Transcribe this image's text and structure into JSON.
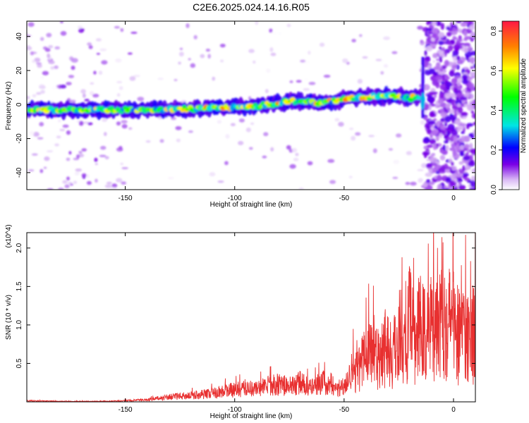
{
  "title": "C2E6.2025.024.14.16.R05",
  "chart_data": [
    {
      "type": "heatmap",
      "xlabel": "Height of straight line (km)",
      "ylabel": "Frequency (Hz)",
      "xlim": [
        -195,
        10
      ],
      "ylim": [
        -50,
        49
      ],
      "xticks": [
        "-150",
        "-100",
        "-50",
        "0"
      ],
      "yticks": [
        "-40",
        "-20",
        "0",
        "20",
        "40"
      ],
      "colorbar": {
        "label": "Normalized spectral amplitude",
        "range": [
          0,
          0.85
        ],
        "ticks": [
          "0.0",
          "0.2",
          "0.4",
          "0.6",
          "0.8"
        ]
      },
      "ridge": {
        "x": [
          -195,
          -170,
          -150,
          -130,
          -110,
          -90,
          -75,
          -60,
          -45,
          -30,
          -20,
          -14
        ],
        "y": [
          -3,
          -3,
          -3,
          -3,
          -2,
          -1,
          2,
          1,
          4,
          5,
          4,
          5
        ]
      },
      "vertical_feature_at_x": -14,
      "grid": false
    },
    {
      "type": "line",
      "xlabel": "Height of straight line (km)",
      "ylabel": "SNR (10 * v/v)",
      "y_multiplier": "(x10^4)",
      "xlim": [
        -195,
        10
      ],
      "ylim": [
        0,
        2.2
      ],
      "xticks": [
        "-150",
        "-100",
        "-50",
        "0"
      ],
      "yticks": [
        "0.5",
        "1.0",
        "1.5",
        "2.0"
      ],
      "series": [
        {
          "color": "#e83030",
          "x": [
            -195,
            -180,
            -160,
            -150,
            -140,
            -130,
            -120,
            -110,
            -105,
            -100,
            -95,
            -90,
            -85,
            -80,
            -75,
            -70,
            -65,
            -60,
            -55,
            -50,
            -45,
            -42,
            -40,
            -38,
            -35,
            -32,
            -30,
            -28,
            -25,
            -22,
            -20,
            -18,
            -15,
            -12,
            -10,
            -8,
            -6,
            -4,
            -2,
            0,
            2,
            4,
            6,
            8,
            10
          ],
          "y": [
            0.02,
            0.01,
            0.01,
            0.02,
            0.04,
            0.09,
            0.12,
            0.16,
            0.2,
            0.22,
            0.26,
            0.24,
            0.3,
            0.33,
            0.28,
            0.36,
            0.25,
            0.38,
            0.22,
            0.3,
            0.7,
            0.75,
            0.9,
            1.1,
            0.9,
            1.1,
            1.2,
            0.8,
            1.5,
            1.0,
            1.6,
            1.2,
            1.5,
            1.3,
            1.6,
            1.7,
            1.9,
            1.8,
            1.6,
            1.7,
            1.4,
            1.6,
            1.4,
            1.2,
            1.7
          ]
        }
      ],
      "grid": false
    }
  ]
}
